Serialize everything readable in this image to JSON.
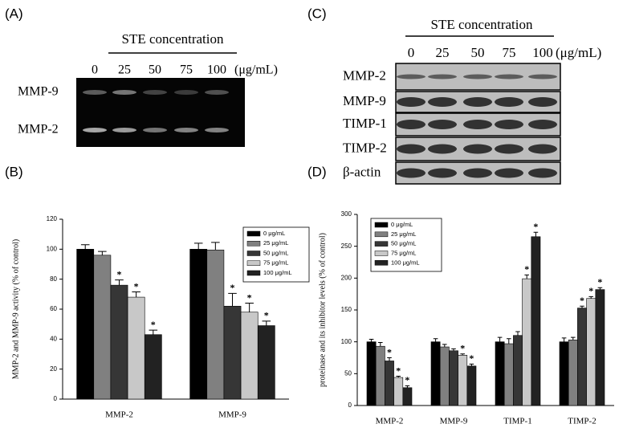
{
  "panels": {
    "A": {
      "label": "(A)",
      "header": "STE concentration",
      "concentrations": [
        "0",
        "25",
        "50",
        "75",
        "100"
      ],
      "unit": "(μg/mL)",
      "rows": [
        "MMP-9",
        "MMP-2"
      ]
    },
    "C": {
      "label": "(C)",
      "header": "STE concentration",
      "concentrations": [
        "0",
        "25",
        "50",
        "75",
        "100"
      ],
      "unit": "(μg/mL)",
      "rows": [
        "MMP-2",
        "MMP-9",
        "TIMP-1",
        "TIMP-2",
        "β-actin"
      ]
    }
  },
  "chart_data": [
    {
      "type": "bar",
      "panel": "(B)",
      "y_label": "MMP-2 and MMP-9 activity (% of control)",
      "categories": [
        "MMP-2",
        "MMP-9"
      ],
      "series": [
        {
          "name": "0 μg/mL",
          "color": "#000000",
          "values": [
            100,
            100
          ],
          "errors": [
            3,
            4
          ],
          "significance": [
            null,
            null
          ]
        },
        {
          "name": "25 μg/mL",
          "color": "#808080",
          "values": [
            96,
            99.5
          ],
          "errors": [
            2.5,
            5
          ],
          "significance": [
            null,
            null
          ]
        },
        {
          "name": "50 μg/mL",
          "color": "#363636",
          "values": [
            76,
            62
          ],
          "errors": [
            3.5,
            8.5
          ],
          "significance": [
            "*",
            "*"
          ]
        },
        {
          "name": "75 μg/mL",
          "color": "#c8c8c8",
          "values": [
            68,
            58
          ],
          "errors": [
            3.5,
            6
          ],
          "significance": [
            "*",
            "*"
          ]
        },
        {
          "name": "100 μg/mL",
          "color": "#222222",
          "values": [
            43,
            49
          ],
          "errors": [
            3,
            3
          ],
          "significance": [
            "*",
            "*"
          ]
        }
      ],
      "ylim": [
        0,
        120
      ],
      "yticks": [
        0,
        20,
        40,
        60,
        80,
        100,
        120
      ]
    },
    {
      "type": "bar",
      "panel": "(D)",
      "y_label": "proteinase and its inhibitor levels (% of control)",
      "categories": [
        "MMP-2",
        "MMP-9",
        "TIMP-1",
        "TIMP-2"
      ],
      "series": [
        {
          "name": "0 μg/mL",
          "color": "#000000",
          "values": [
            100,
            100,
            100,
            100
          ],
          "errors": [
            4,
            5,
            7,
            6
          ],
          "significance": [
            null,
            null,
            null,
            null
          ]
        },
        {
          "name": "25 μg/mL",
          "color": "#808080",
          "values": [
            93,
            92,
            97,
            103
          ],
          "errors": [
            6,
            4,
            8,
            4
          ],
          "significance": [
            null,
            null,
            null,
            null
          ]
        },
        {
          "name": "50 μg/mL",
          "color": "#363636",
          "values": [
            70,
            86,
            110,
            153
          ],
          "errors": [
            5,
            3,
            6,
            3
          ],
          "significance": [
            "*",
            null,
            null,
            "*"
          ]
        },
        {
          "name": "75 μg/mL",
          "color": "#c8c8c8",
          "values": [
            44,
            79,
            199,
            168
          ],
          "errors": [
            2,
            2,
            6,
            3
          ],
          "significance": [
            "*",
            "*",
            "*",
            "*"
          ]
        },
        {
          "name": "100 μg/mL",
          "color": "#222222",
          "values": [
            28,
            62,
            265,
            182
          ],
          "errors": [
            3,
            3,
            7,
            3
          ],
          "significance": [
            "*",
            "*",
            "*",
            "*"
          ]
        }
      ],
      "ylim": [
        0,
        300
      ],
      "yticks": [
        0,
        50,
        100,
        150,
        200,
        250,
        300
      ]
    }
  ]
}
